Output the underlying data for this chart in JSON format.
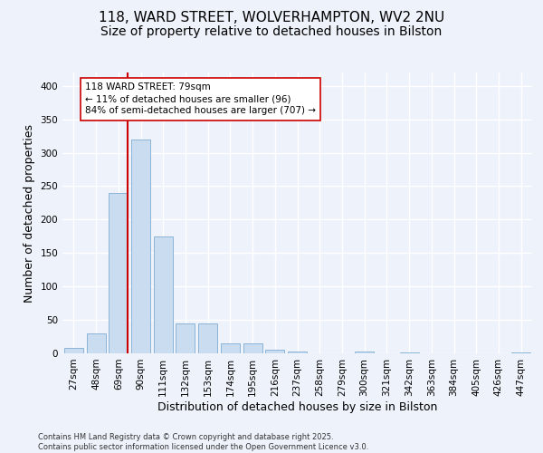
{
  "title_line1": "118, WARD STREET, WOLVERHAMPTON, WV2 2NU",
  "title_line2": "Size of property relative to detached houses in Bilston",
  "xlabel": "Distribution of detached houses by size in Bilston",
  "ylabel": "Number of detached properties",
  "categories": [
    "27sqm",
    "48sqm",
    "69sqm",
    "90sqm",
    "111sqm",
    "132sqm",
    "153sqm",
    "174sqm",
    "195sqm",
    "216sqm",
    "237sqm",
    "258sqm",
    "279sqm",
    "300sqm",
    "321sqm",
    "342sqm",
    "363sqm",
    "384sqm",
    "405sqm",
    "426sqm",
    "447sqm"
  ],
  "values": [
    8,
    30,
    240,
    320,
    175,
    45,
    45,
    15,
    15,
    5,
    3,
    0,
    0,
    3,
    0,
    1,
    0,
    0,
    0,
    0,
    2
  ],
  "bar_color": "#c9dcf0",
  "bar_edge_color": "#8ab4d8",
  "vline_color": "#cc0000",
  "vline_x_index": 2,
  "annotation_text": "118 WARD STREET: 79sqm\n← 11% of detached houses are smaller (96)\n84% of semi-detached houses are larger (707) →",
  "annotation_box_facecolor": "#ffffff",
  "annotation_box_edgecolor": "#cc0000",
  "annotation_fontsize": 7.5,
  "ylim": [
    0,
    420
  ],
  "yticks": [
    0,
    50,
    100,
    150,
    200,
    250,
    300,
    350,
    400
  ],
  "background_color": "#eef2fa",
  "grid_color": "#ffffff",
  "title_fontsize": 11,
  "subtitle_fontsize": 10,
  "axis_label_fontsize": 9,
  "tick_fontsize": 7.5,
  "footer_text": "Contains HM Land Registry data © Crown copyright and database right 2025.\nContains public sector information licensed under the Open Government Licence v3.0."
}
